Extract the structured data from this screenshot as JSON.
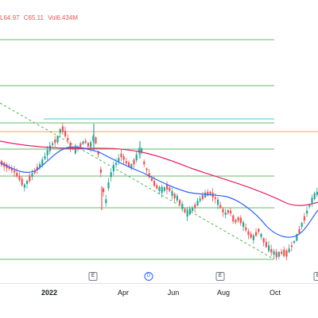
{
  "legend": {
    "low": "L64.97",
    "close": "C65.11",
    "volume": "Vol6.434M"
  },
  "colors": {
    "up": "#26a69a",
    "down": "#ef5350",
    "ma_fast": "#2962ff",
    "ma_slow": "#e91e63",
    "fib_green": "#4caf50",
    "fib_teal": "#26c6da",
    "fib_orange": "#ff9800",
    "trendline": "#4caf50"
  },
  "time_axis": {
    "labels": [
      {
        "text": "2022",
        "bold": true
      },
      {
        "text": "Apr",
        "bold": false
      },
      {
        "text": "Jun",
        "bold": false
      },
      {
        "text": "Aug",
        "bold": false
      },
      {
        "text": "Oct",
        "bold": false
      }
    ]
  },
  "event_markers": [
    {
      "text": "E",
      "type": "earnings"
    },
    {
      "text": "D",
      "type": "dividend"
    },
    {
      "text": "E",
      "type": "earnings"
    },
    {
      "text": "E",
      "type": "earnings"
    }
  ]
}
